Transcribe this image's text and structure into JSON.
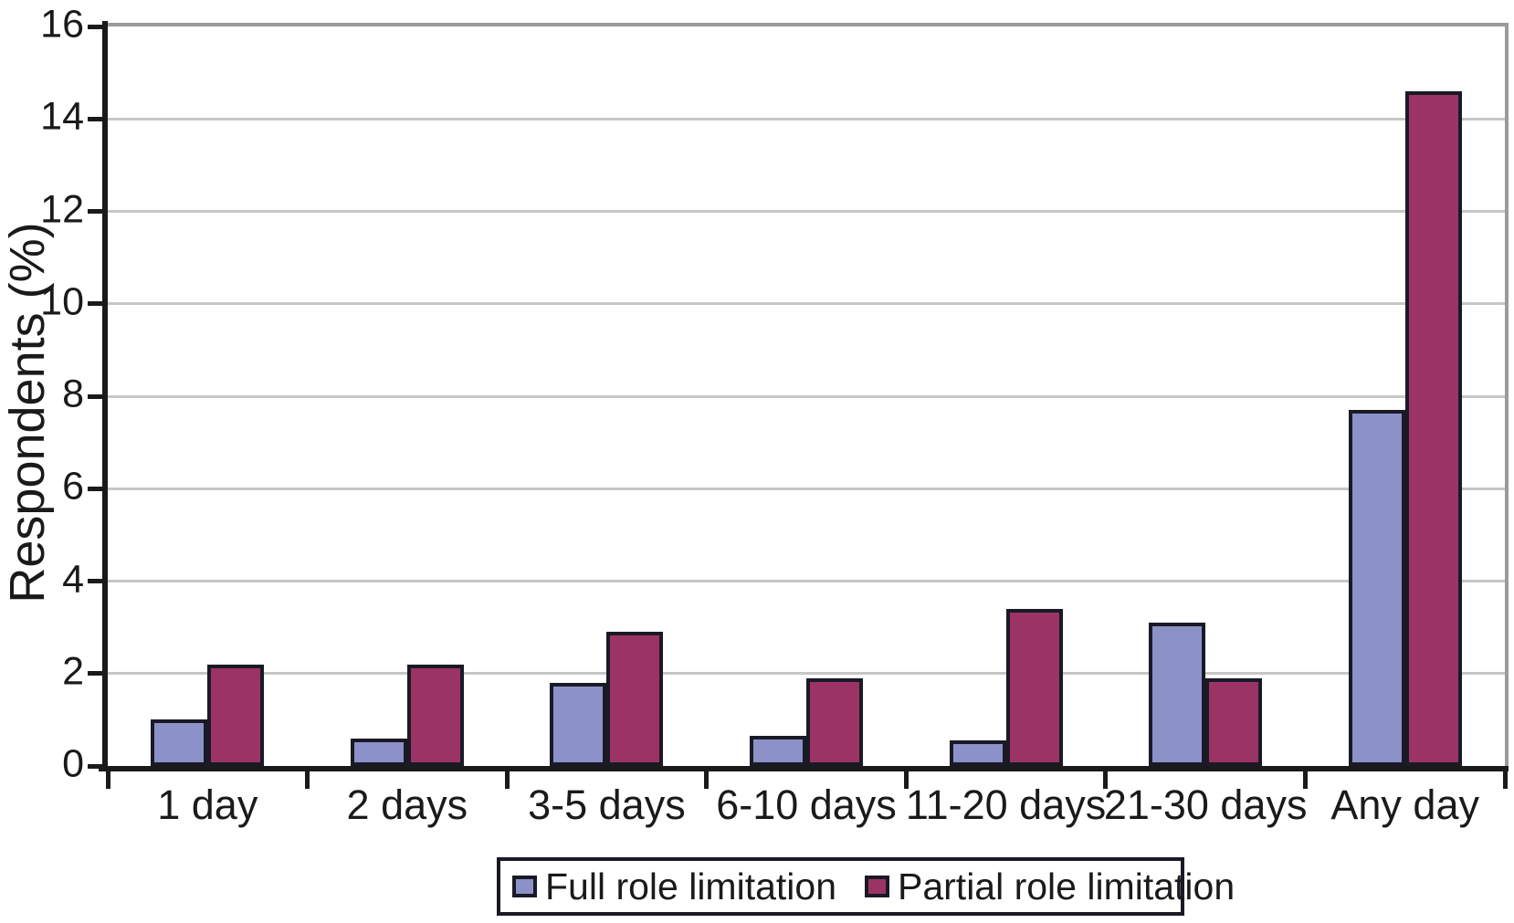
{
  "chart_data": {
    "type": "bar",
    "title": "",
    "ylabel": "Respondents (%)",
    "xlabel": "",
    "categories": [
      "1 day",
      "2 days",
      "3-5 days",
      "6-10 days",
      "11-20 days",
      "21-30 days",
      "Any day"
    ],
    "series": [
      {
        "name": "Full role limitation",
        "color": "#8c92c8",
        "values": [
          1.0,
          0.6,
          1.8,
          0.65,
          0.55,
          3.1,
          7.7
        ]
      },
      {
        "name": "Partial role limitation",
        "color": "#9c3365",
        "values": [
          2.2,
          2.2,
          2.9,
          1.9,
          3.4,
          1.9,
          14.6
        ]
      }
    ],
    "ylim": [
      0,
      16
    ],
    "ytick_step": 2,
    "yticks": [
      0,
      2,
      4,
      6,
      8,
      10,
      12,
      14,
      16
    ],
    "grid": true,
    "legend_position": "bottom",
    "colors": {
      "bar_border": "#1a1a26",
      "gridline": "#c6c6c6",
      "axis": "#1a1a1a",
      "plot_border": "#9a9a9a",
      "text": "#1a1a1a"
    }
  }
}
